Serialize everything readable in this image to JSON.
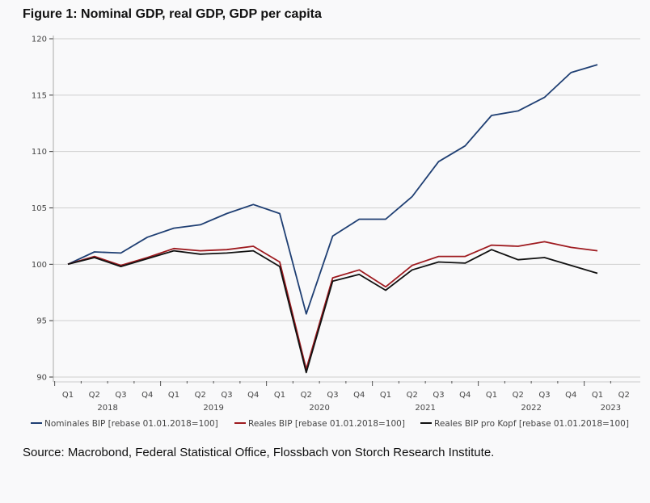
{
  "chart_data": {
    "type": "line",
    "title": "Figure 1: Nominal GDP, real GDP, GDP per capita",
    "xlabel": "",
    "ylabel": "",
    "ylim": [
      90,
      120
    ],
    "yticks": [
      90,
      95,
      100,
      105,
      110,
      115,
      120
    ],
    "grid": true,
    "legend_position": "bottom",
    "x": [
      "Q1 2018",
      "Q2 2018",
      "Q3 2018",
      "Q4 2018",
      "Q1 2019",
      "Q2 2019",
      "Q3 2019",
      "Q4 2019",
      "Q1 2020",
      "Q2 2020",
      "Q3 2020",
      "Q4 2020",
      "Q1 2021",
      "Q2 2021",
      "Q3 2021",
      "Q4 2021",
      "Q1 2022",
      "Q2 2022",
      "Q3 2022",
      "Q4 2022",
      "Q1 2023",
      "Q2 2023"
    ],
    "quarter_labels": [
      "Q1",
      "Q2",
      "Q3",
      "Q4",
      "Q1",
      "Q2",
      "Q3",
      "Q4",
      "Q1",
      "Q2",
      "Q3",
      "Q4",
      "Q1",
      "Q2",
      "Q3",
      "Q4",
      "Q1",
      "Q2",
      "Q3",
      "Q4",
      "Q1",
      "Q2"
    ],
    "year_labels": [
      {
        "label": "2018",
        "center_index": 1.5
      },
      {
        "label": "2019",
        "center_index": 5.5
      },
      {
        "label": "2020",
        "center_index": 9.5
      },
      {
        "label": "2021",
        "center_index": 13.5
      },
      {
        "label": "2022",
        "center_index": 17.5
      },
      {
        "label": "2023",
        "center_index": 20.5
      }
    ],
    "series": [
      {
        "name": "Nominales BIP [rebase 01.01.2018=100]",
        "color": "#1f3f73",
        "values": [
          100.0,
          101.1,
          101.0,
          102.4,
          103.2,
          103.5,
          104.5,
          105.3,
          104.5,
          95.6,
          102.5,
          104.0,
          104.0,
          106.0,
          109.1,
          110.5,
          113.2,
          113.6,
          114.8,
          117.0,
          117.7,
          null
        ]
      },
      {
        "name": "Reales BIP [rebase 01.01.2018=100]",
        "color": "#9e1a1f",
        "values": [
          100.0,
          100.7,
          99.9,
          100.6,
          101.4,
          101.2,
          101.3,
          101.6,
          100.2,
          90.7,
          98.8,
          99.5,
          98.0,
          99.9,
          100.7,
          100.7,
          101.7,
          101.6,
          102.0,
          101.5,
          101.2,
          null
        ]
      },
      {
        "name": "Reales BIP pro Kopf [rebase 01.01.2018=100]",
        "color": "#111111",
        "values": [
          100.0,
          100.6,
          99.8,
          100.5,
          101.2,
          100.9,
          101.0,
          101.2,
          99.8,
          90.4,
          98.5,
          99.1,
          97.7,
          99.5,
          100.2,
          100.1,
          101.3,
          100.4,
          100.6,
          99.9,
          99.2,
          null
        ]
      }
    ]
  },
  "source": "Source: Macrobond, Federal Statistical Office, Flossbach von Storch Research Institute."
}
